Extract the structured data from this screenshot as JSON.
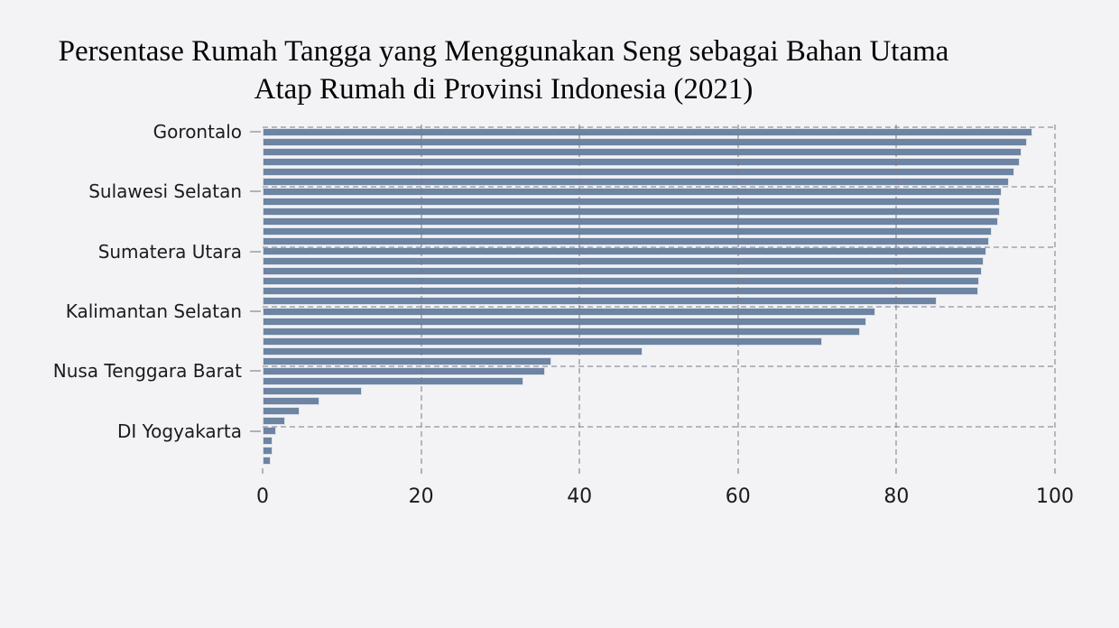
{
  "title": {
    "line1": "Persentase Rumah Tangga yang Menggunakan Seng sebagai Bahan Utama",
    "line2": "Atap Rumah di Provinsi Indonesia (2021)"
  },
  "colors": {
    "background": "#f3f3f5",
    "bar_fill": "#6d84a2",
    "bar_edge": "#dbe0e9",
    "gridline": "#bdbdc3",
    "tick_mark": "#b1b1b7",
    "tick_label": "#1b1b1b",
    "title_text": "#050505"
  },
  "chart_data": {
    "type": "bar",
    "orientation": "horizontal",
    "title": "Persentase Rumah Tangga yang Menggunakan Seng sebagai Bahan Utama Atap Rumah di Provinsi Indonesia (2021)",
    "xlabel": "",
    "ylabel": "",
    "xlim": [
      0,
      100
    ],
    "xticks": [
      0,
      20,
      40,
      60,
      80,
      100
    ],
    "grid": "dashed",
    "legend": "none",
    "bar_count": 34,
    "sort_order": "descending from top",
    "ytick_labels": [
      "Gorontalo",
      "Sulawesi Selatan",
      "Sumatera Utara",
      "Kalimantan Selatan",
      "Nusa Tenggara Barat",
      "DI Yogyakarta"
    ],
    "ytick_label_rows": [
      0,
      6,
      12,
      18,
      24,
      30
    ],
    "categories": [
      "Gorontalo",
      "",
      "",
      "",
      "",
      "",
      "Sulawesi Selatan",
      "",
      "",
      "",
      "",
      "",
      "Sumatera Utara",
      "",
      "",
      "",
      "",
      "",
      "Kalimantan Selatan",
      "",
      "",
      "",
      "",
      "",
      "Nusa Tenggara Barat",
      "",
      "",
      "",
      "",
      "",
      "DI Yogyakarta",
      "",
      "",
      ""
    ],
    "values": [
      97.2,
      96.5,
      95.8,
      95.6,
      94.9,
      94.2,
      93.3,
      93.1,
      93.0,
      92.8,
      92.0,
      91.7,
      91.3,
      91.0,
      90.8,
      90.4,
      90.3,
      85.1,
      77.3,
      76.2,
      75.4,
      70.6,
      48.0,
      36.4,
      35.7,
      32.9,
      12.5,
      7.2,
      4.7,
      2.8,
      1.7,
      1.2,
      1.2,
      1.0
    ]
  }
}
